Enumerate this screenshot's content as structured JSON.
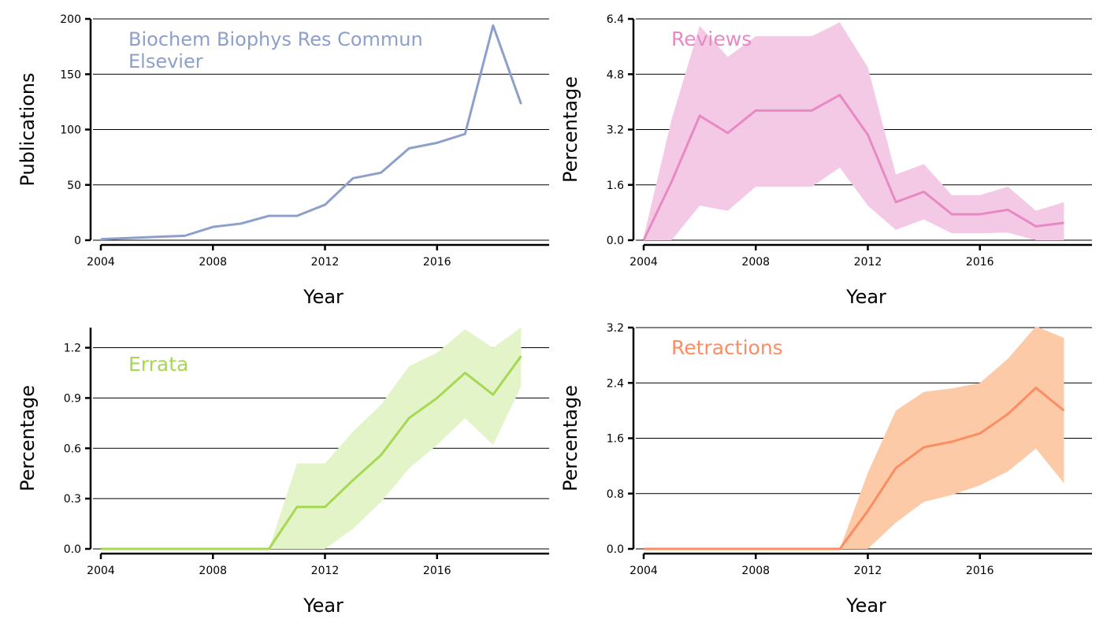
{
  "chart_data": [
    {
      "type": "line",
      "xlabel": "Year",
      "ylabel": "Publications",
      "xlim": [
        2004,
        2020
      ],
      "ylim": [
        0,
        200
      ],
      "xticks": [
        2004,
        2008,
        2012,
        2016
      ],
      "yticks": [
        0,
        50,
        100,
        150,
        200
      ],
      "ytick_labels": [
        "0",
        "50",
        "100",
        "150",
        "200"
      ],
      "grid": "horizontal",
      "annotation": [
        "Biochem Biophys Res Commun",
        "Elsevier"
      ],
      "color": "#8da0cb",
      "band_color": "#8da0cb",
      "series": [
        {
          "x": [
            2004,
            2005,
            2006,
            2007,
            2008,
            2009,
            2010,
            2011,
            2012,
            2013,
            2014,
            2015,
            2016,
            2017,
            2018,
            2019
          ],
          "values": [
            1,
            2,
            3,
            4,
            12,
            15,
            22,
            22,
            32,
            56,
            61,
            83,
            88,
            96,
            194,
            123
          ]
        }
      ]
    },
    {
      "type": "line",
      "xlabel": "Year",
      "ylabel": "Percentage",
      "xlim": [
        2004,
        2020
      ],
      "ylim": [
        0,
        6.4
      ],
      "xticks": [
        2004,
        2008,
        2012,
        2016
      ],
      "yticks": [
        0,
        1.6,
        3.2,
        4.8,
        6.4
      ],
      "ytick_labels": [
        "0.0",
        "1.6",
        "3.2",
        "4.8",
        "6.4"
      ],
      "grid": "horizontal",
      "annotation": [
        "Reviews"
      ],
      "color": "#e78ac3",
      "band_color": "#f4c9e5",
      "series": [
        {
          "x": [
            2004,
            2005,
            2006,
            2007,
            2008,
            2009,
            2010,
            2011,
            2012,
            2013,
            2014,
            2015,
            2016,
            2017,
            2018,
            2019
          ],
          "values": [
            0.0,
            1.7,
            3.6,
            3.1,
            3.75,
            3.75,
            3.75,
            4.2,
            3.05,
            1.1,
            1.4,
            0.75,
            0.75,
            0.88,
            0.4,
            0.5
          ],
          "upper": [
            0.1,
            3.5,
            6.2,
            5.3,
            5.9,
            5.9,
            5.9,
            6.3,
            5.0,
            1.9,
            2.2,
            1.3,
            1.3,
            1.55,
            0.85,
            1.1
          ],
          "lower": [
            0.0,
            0.0,
            1.0,
            0.85,
            1.55,
            1.55,
            1.55,
            2.1,
            1.0,
            0.3,
            0.6,
            0.2,
            0.2,
            0.22,
            0.0,
            0.0
          ]
        }
      ]
    },
    {
      "type": "line",
      "xlabel": "Year",
      "ylabel": "Percentage",
      "xlim": [
        2004,
        2020
      ],
      "ylim": [
        0,
        1.32
      ],
      "xticks": [
        2004,
        2008,
        2012,
        2016
      ],
      "yticks": [
        0,
        0.3,
        0.6,
        0.9,
        1.2
      ],
      "ytick_labels": [
        "0.0",
        "0.3",
        "0.6",
        "0.9",
        "1.2"
      ],
      "grid": "horizontal",
      "annotation": [
        "Errata"
      ],
      "color": "#a6d854",
      "band_color": "#e4f4c9",
      "series": [
        {
          "x": [
            2004,
            2005,
            2006,
            2007,
            2008,
            2009,
            2010,
            2011,
            2012,
            2013,
            2014,
            2015,
            2016,
            2017,
            2018,
            2019
          ],
          "values": [
            0,
            0,
            0,
            0,
            0,
            0,
            0,
            0.25,
            0.25,
            0.41,
            0.56,
            0.78,
            0.9,
            1.05,
            0.92,
            1.15
          ],
          "upper": [
            0,
            0,
            0,
            0,
            0,
            0,
            0,
            0.51,
            0.51,
            0.7,
            0.86,
            1.09,
            1.17,
            1.31,
            1.2,
            1.32
          ],
          "lower": [
            0,
            0,
            0,
            0,
            0,
            0,
            0,
            0,
            0,
            0.12,
            0.28,
            0.48,
            0.62,
            0.78,
            0.62,
            0.97
          ]
        }
      ]
    },
    {
      "type": "line",
      "xlabel": "Year",
      "ylabel": "Percentage",
      "xlim": [
        2004,
        2020
      ],
      "ylim": [
        0,
        3.2
      ],
      "xticks": [
        2004,
        2008,
        2012,
        2016
      ],
      "yticks": [
        0,
        0.8,
        1.6,
        2.4,
        3.2
      ],
      "ytick_labels": [
        "0.0",
        "0.8",
        "1.6",
        "2.4",
        "3.2"
      ],
      "grid": "horizontal",
      "annotation": [
        "Retractions"
      ],
      "color": "#fc8d62",
      "band_color": "#fdcaa8",
      "series": [
        {
          "x": [
            2004,
            2005,
            2006,
            2007,
            2008,
            2009,
            2010,
            2011,
            2012,
            2013,
            2014,
            2015,
            2016,
            2017,
            2018,
            2019
          ],
          "values": [
            0,
            0,
            0,
            0,
            0,
            0,
            0,
            0,
            0.55,
            1.17,
            1.47,
            1.55,
            1.67,
            1.95,
            2.33,
            2.0
          ],
          "upper": [
            0,
            0,
            0,
            0,
            0,
            0,
            0,
            0,
            1.1,
            2.0,
            2.27,
            2.32,
            2.4,
            2.75,
            3.22,
            3.05
          ],
          "lower": [
            0,
            0,
            0,
            0,
            0,
            0,
            0,
            0,
            0,
            0.38,
            0.68,
            0.78,
            0.92,
            1.12,
            1.45,
            0.95
          ]
        }
      ]
    }
  ]
}
